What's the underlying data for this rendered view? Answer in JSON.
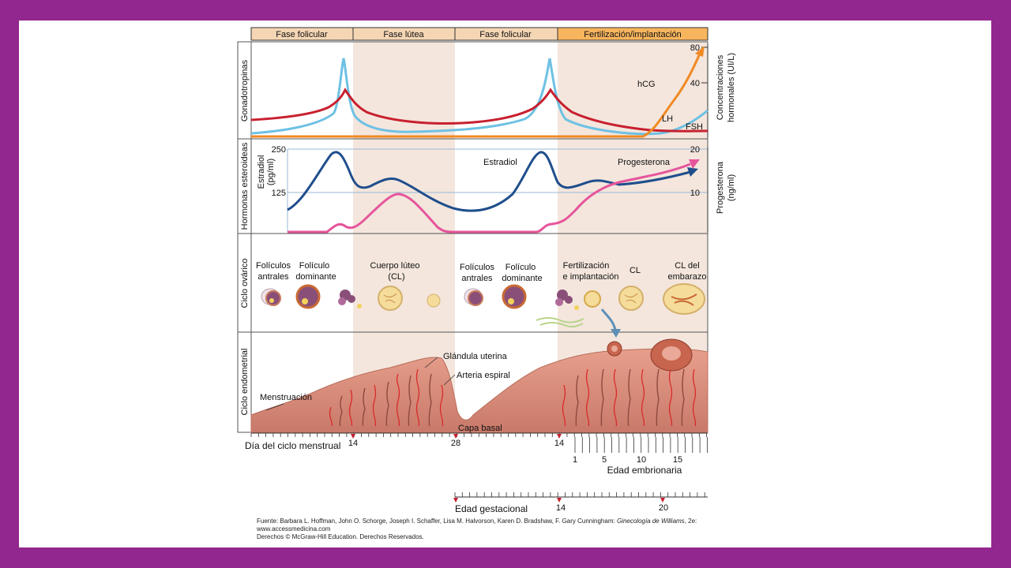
{
  "phases": [
    "Fase folicular",
    "Fase lútea",
    "Fase folicular",
    "Fertilización/implantación"
  ],
  "panels": {
    "gonadotropins": {
      "side_label": "Gonadotropinas",
      "right_axis_label_line1": "Concentraciones",
      "right_axis_label_line2": "hormonales (UI/L)",
      "right_ticks": [
        "80",
        "40"
      ],
      "curve_labels": {
        "hcg": "hCG",
        "lh": "LH",
        "fsh": "FSH"
      }
    },
    "steroids": {
      "side_label": "Hormonas esteroideas",
      "left_axis_label_line1": "Estradiol",
      "left_axis_label_line2": "(pg/ml)",
      "left_ticks": [
        "250",
        "125"
      ],
      "right_axis_label_line1": "Progesterona",
      "right_axis_label_line2": "(ng/ml)",
      "right_ticks": [
        "20",
        "10"
      ],
      "curve_labels": {
        "estradiol": "Estradiol",
        "progesterone": "Progesterona"
      }
    },
    "ovarian": {
      "side_label": "Ciclo ovárico",
      "stages": [
        {
          "line1": "Folículos",
          "line2": "antrales"
        },
        {
          "line1": "Folículo",
          "line2": "dominante"
        },
        {
          "line1": "Cuerpo lúteo",
          "line2": "(CL)"
        },
        {
          "line1": "Folículos",
          "line2": "antrales"
        },
        {
          "line1": "Folículo",
          "line2": "dominante"
        },
        {
          "line1": "Fertilización",
          "line2": "e implantación"
        },
        {
          "line1": "CL",
          "line2": ""
        },
        {
          "line1": "CL del",
          "line2": "embarazo"
        }
      ]
    },
    "endometrial": {
      "side_label": "Ciclo endometrial",
      "labels": {
        "gland": "Glándula uterina",
        "artery": "Arteria espiral",
        "menstruation": "Menstruación",
        "basal": "Capa basal"
      }
    }
  },
  "axes": {
    "menstrual_day_label": "Día del ciclo menstrual",
    "menstrual_days": [
      "14",
      "28",
      "14"
    ],
    "embryonic_age_label": "Edad embrionaria",
    "embryonic_ticks": [
      "1",
      "5",
      "10",
      "15"
    ],
    "gestational_age_label": "Edad gestacional",
    "gestational_ticks": [
      "14",
      "20"
    ]
  },
  "credit": {
    "line1_prefix": "Fuente: Barbara L. Hoffman, John O. Schorge, Joseph I. Schaffer, Lisa M. Halvorson, Karen D. Bradshaw, F. Gary Cunningham: ",
    "line1_book": "Ginecología de Williams",
    "line1_suffix": ", 2e:",
    "line2": "www.accessmedicina.com",
    "line3": "Derechos © McGraw-Hill Education. Derechos Reservados."
  },
  "colors": {
    "slide_border": "#92278f",
    "fsh": "#6ec1e4",
    "lh": "#c8202f",
    "hcg": "#f08a24",
    "estradiol": "#1f4e8c",
    "progesterone": "#e6559b",
    "luteal_shade": "#f4e6dd",
    "header_bar": "#f5d6b4",
    "header_highlight": "#f7b55e",
    "endometrium": "#e8a08e"
  }
}
